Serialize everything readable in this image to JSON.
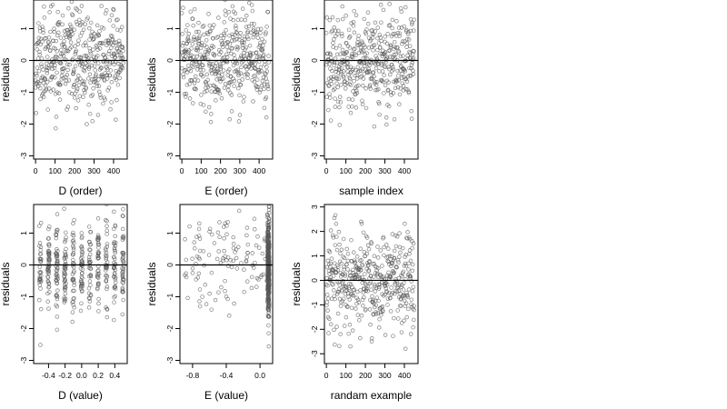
{
  "chart_data": [
    {
      "type": "scatter",
      "title": "",
      "xlabel": "D (order)",
      "ylabel": "residuals",
      "xlim": [
        -10,
        470
      ],
      "ylim": [
        -3.1,
        1.9
      ],
      "x_ticks": [
        "0",
        "100",
        "200",
        "300",
        "400"
      ],
      "y_ticks": [
        "-3",
        "-2",
        "-1",
        "0",
        "1"
      ],
      "reference_line_y": 0,
      "points": {
        "generator": "index",
        "n": 450,
        "seed": 11,
        "x_range": [
          0,
          450
        ],
        "y_mean": 0,
        "y_sd": 0.75,
        "shape": "open-circle",
        "color": "#555555"
      }
    },
    {
      "type": "scatter",
      "title": "",
      "xlabel": "E (order)",
      "ylabel": "residuals",
      "xlim": [
        -10,
        470
      ],
      "ylim": [
        -3.1,
        1.9
      ],
      "x_ticks": [
        "0",
        "100",
        "200",
        "300",
        "400"
      ],
      "y_ticks": [
        "-3",
        "-2",
        "-1",
        "0",
        "1"
      ],
      "reference_line_y": 0,
      "points": {
        "generator": "index",
        "n": 450,
        "seed": 23,
        "x_range": [
          0,
          450
        ],
        "y_mean": 0,
        "y_sd": 0.75,
        "shape": "open-circle",
        "color": "#555555"
      }
    },
    {
      "type": "scatter",
      "title": "",
      "xlabel": "sample index",
      "ylabel": "residuals",
      "xlim": [
        -10,
        470
      ],
      "ylim": [
        -3.1,
        1.9
      ],
      "x_ticks": [
        "0",
        "100",
        "200",
        "300",
        "400"
      ],
      "y_ticks": [
        "-3",
        "-2",
        "-1",
        "0",
        "1"
      ],
      "reference_line_y": 0,
      "points": {
        "generator": "index",
        "n": 450,
        "seed": 37,
        "x_range": [
          0,
          450
        ],
        "y_mean": 0,
        "y_sd": 0.75,
        "shape": "open-circle",
        "color": "#555555"
      }
    },
    {
      "type": "scatter",
      "title": "",
      "xlabel": "D (value)",
      "ylabel": "residuals",
      "xlim": [
        -0.58,
        0.55
      ],
      "ylim": [
        -3.1,
        1.9
      ],
      "x_ticks": [
        "-0.4",
        "-0.2",
        "0.0",
        "0.2",
        "0.4"
      ],
      "y_ticks": [
        "-3",
        "-2",
        "-1",
        "0",
        "1"
      ],
      "reference_line_y": 0,
      "points": {
        "generator": "discrete",
        "n": 450,
        "seed": 41,
        "x_levels": [
          -0.5,
          -0.4,
          -0.3,
          -0.2,
          -0.1,
          0.0,
          0.1,
          0.2,
          0.3,
          0.4,
          0.5
        ],
        "x_jitter": 0.012,
        "y_mean": 0,
        "y_sd": 0.75,
        "shape": "open-circle",
        "color": "#555555"
      }
    },
    {
      "type": "scatter",
      "title": "",
      "xlabel": "E (value)",
      "ylabel": "residuals",
      "xlim": [
        -0.95,
        0.15
      ],
      "ylim": [
        -3.1,
        1.9
      ],
      "x_ticks": [
        "-0.8",
        "-0.4",
        "0.0"
      ],
      "y_ticks": [
        "-3",
        "-2",
        "-1",
        "0",
        "1"
      ],
      "reference_line_y": 0,
      "points": {
        "generator": "clustered",
        "n": 450,
        "seed": 53,
        "cluster_x": 0.1,
        "cluster_fraction": 0.75,
        "x_spread_range": [
          -0.9,
          0.1
        ],
        "y_mean": 0,
        "y_sd": 0.75,
        "shape": "open-circle",
        "color": "#555555"
      }
    },
    {
      "type": "scatter",
      "title": "",
      "xlabel": "randam example",
      "ylabel": "residuals",
      "xlim": [
        -10,
        470
      ],
      "ylim": [
        -3.4,
        3.1
      ],
      "x_ticks": [
        "0",
        "100",
        "200",
        "300",
        "400"
      ],
      "y_ticks": [
        "-3",
        "-2",
        "-1",
        "0",
        "1",
        "2",
        "3"
      ],
      "reference_line_y": 0,
      "points": {
        "generator": "index",
        "n": 450,
        "seed": 67,
        "x_range": [
          0,
          450
        ],
        "y_mean": 0,
        "y_sd": 1.0,
        "shape": "open-circle",
        "color": "#555555"
      }
    }
  ]
}
